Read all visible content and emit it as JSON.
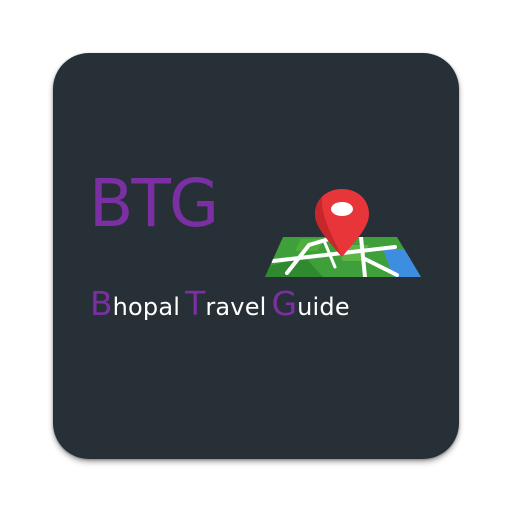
{
  "app_icon": {
    "abbreviation": "BTG",
    "name_words": [
      {
        "initial": "B",
        "rest": "hopal"
      },
      {
        "initial": "T",
        "rest": "ravel"
      },
      {
        "initial": "G",
        "rest": "uide"
      }
    ],
    "icon_name": "map-pin-icon"
  },
  "colors": {
    "tile_background": "#263036",
    "brand_purple": "#7a2fa3",
    "name_text": "#ffffff",
    "map_green": "#3f9f3a",
    "map_blue": "#3d8de0",
    "pin_red": "#e8353a"
  }
}
